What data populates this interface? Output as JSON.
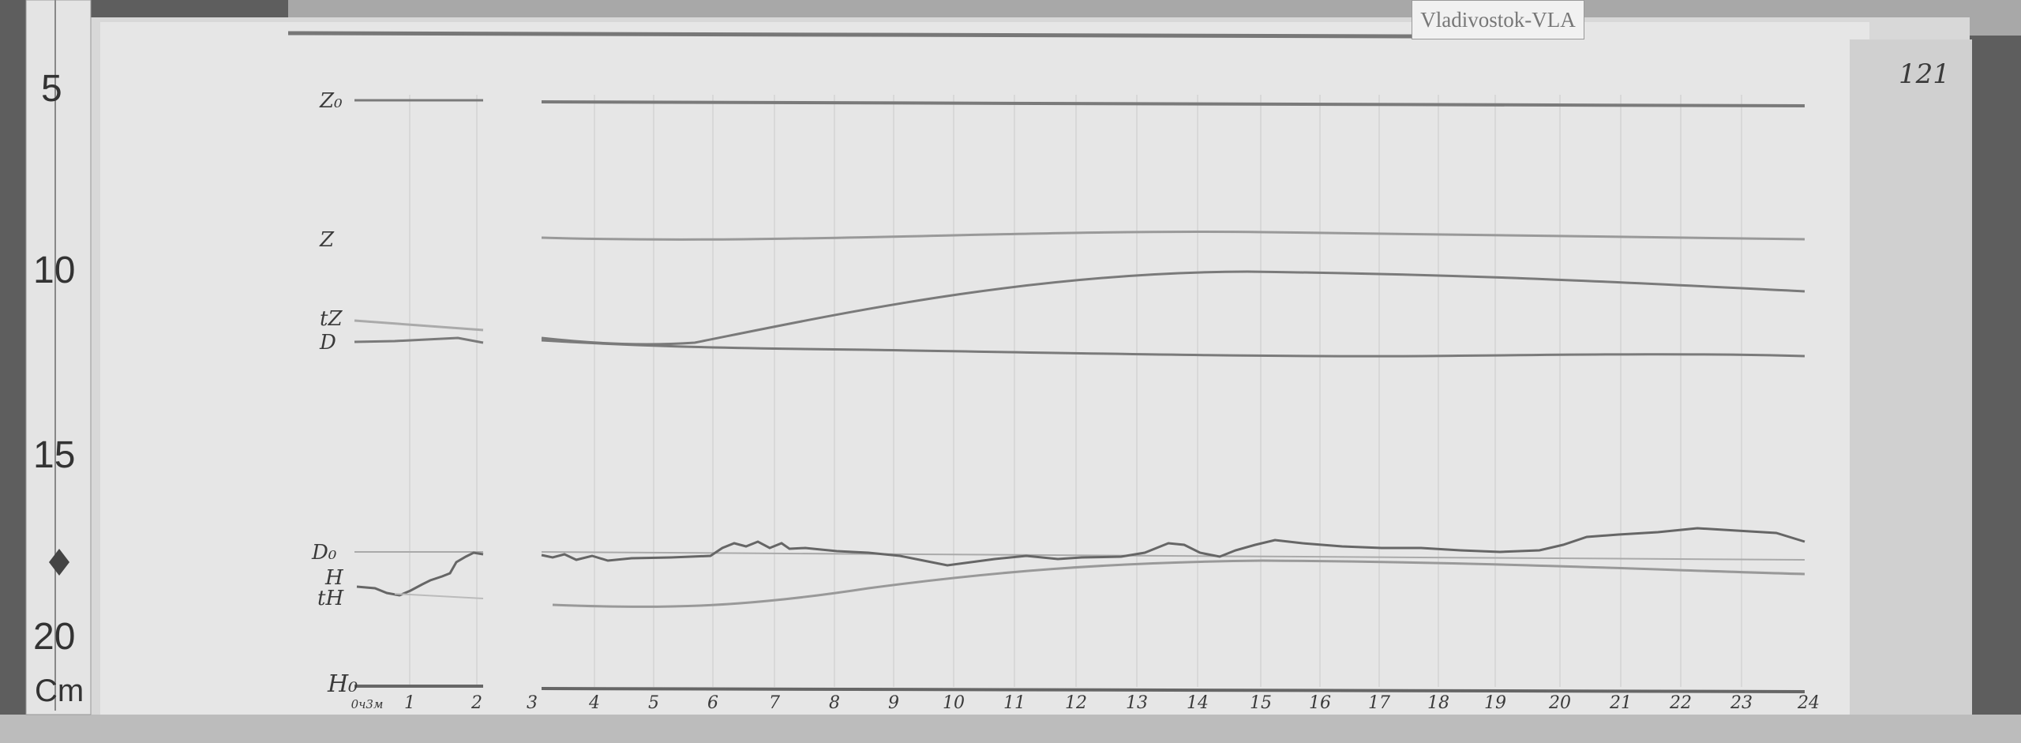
{
  "station_label": "Vladivostok-VLA",
  "sheet_number": "121",
  "ruler": {
    "marks": [
      "5",
      "10",
      "15",
      "20"
    ],
    "unit": "Cm"
  },
  "trace_labels": {
    "z0": "Z₀",
    "z": "Z",
    "tz": "tZ",
    "d": "D",
    "d0": "D₀",
    "h": "H",
    "th": "tH",
    "h0": "H₀"
  },
  "hour_labels": [
    "0ч3м",
    "1",
    "2",
    "3",
    "4",
    "5",
    "6",
    "7",
    "8",
    "9",
    "10",
    "11",
    "12",
    "13",
    "14",
    "15",
    "16",
    "17",
    "18",
    "19",
    "20",
    "21",
    "22",
    "23",
    "24"
  ],
  "colors": {
    "paper": "#e6e6e6",
    "trace": "#6e6e6e",
    "background": "#5a5a5a"
  }
}
